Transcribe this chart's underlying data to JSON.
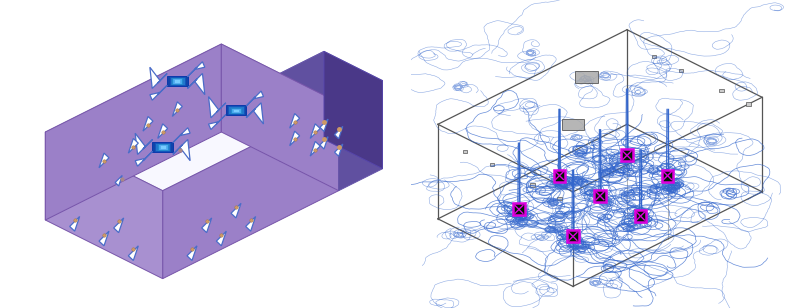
{
  "fig_width": 8.0,
  "fig_height": 3.08,
  "dpi": 100,
  "bg_color": "#ffffff",
  "left": {
    "wall_left_color": "#9b80c8",
    "wall_back_color": "#a890d0",
    "wall_right_color": "#9b80c8",
    "wall_bottom_color": "#7b60b0",
    "corridor_color": "#6050a0",
    "corridor_dark": "#4a3888",
    "floor_color": "#f8f8ff",
    "arrow_color": "#4a6cc8",
    "arrow_fill": "none",
    "diffuser_outer": "#2255aa",
    "diffuser_mid": "#3388cc",
    "diffuser_inner": "#55aaee"
  },
  "right": {
    "box_edge": "#555555",
    "stream_color": "#3366cc",
    "diff_bg": "#001800",
    "diff_border": "#dd00dd",
    "floor_diamond": "#888888"
  },
  "iso": {
    "sx": 1.0,
    "sy": 0.5
  }
}
